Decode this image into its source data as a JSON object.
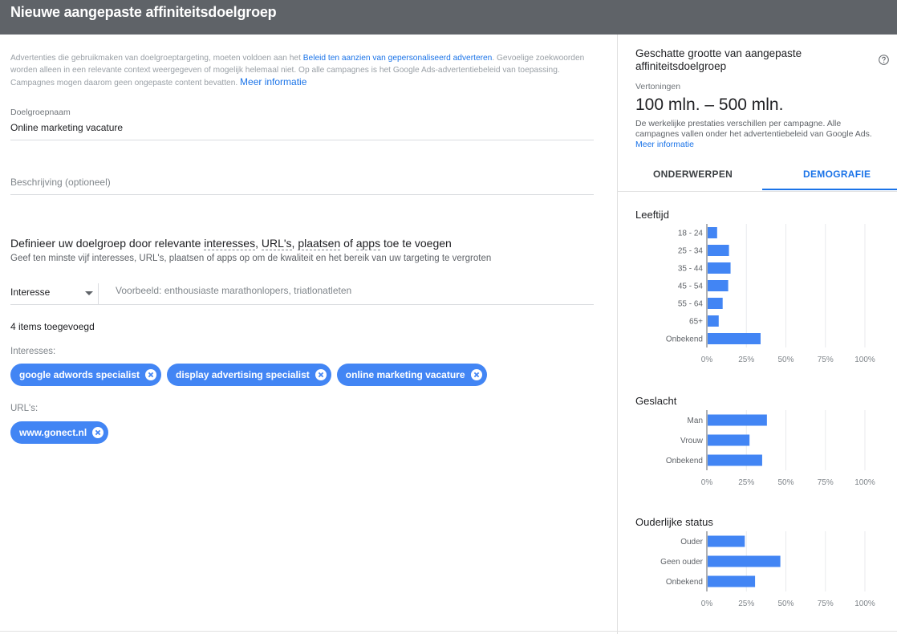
{
  "header": {
    "title": "Nieuwe aangepaste affiniteitsdoelgroep"
  },
  "policy": {
    "prefix": "Advertenties die gebruikmaken van doelgroeptargeting, moeten voldoen aan het ",
    "link": "Beleid ten aanzien van gepersonaliseerd adverteren",
    "suffix": ". Gevoelige zoekwoorden worden alleen in een relevante context weergegeven of mogelijk helemaal niet. Op alle campagnes is het Google Ads-advertentiebeleid van toepassing. Campagnes mogen daarom geen ongepaste content bevatten. ",
    "more": "Meer informatie"
  },
  "form": {
    "name_label": "Doelgroepnaam",
    "name_value": "Online marketing vacature",
    "description_placeholder": "Beschrijving (optioneel)"
  },
  "define": {
    "t1": "Definieer uw doelgroep door relevante ",
    "t2": "interesses",
    "t3": ", ",
    "t4": "URL's",
    "t5": ", ",
    "t6": "plaatsen",
    "t7": " of ",
    "t8": "apps",
    "t9": " toe te voegen",
    "subtitle": "Geef ten minste vijf interesses, URL's, plaatsen of apps op om de kwaliteit en het bereik van uw targeting te vergroten"
  },
  "search": {
    "type_value": "Interesse",
    "placeholder": "Voorbeeld: enthousiaste marathonlopers, triatlonatleten"
  },
  "items": {
    "count_label": "4 items toegevoegd",
    "interests_label": "Interesses:",
    "interests": [
      "google adwords specialist",
      "display advertising specialist",
      "online marketing vacature"
    ],
    "urls_label": "URL's:",
    "urls": [
      "www.gonect.nl"
    ]
  },
  "estimate": {
    "title": "Geschatte grootte van aangepaste affiniteitsdoelgroep",
    "impressions_label": "Vertoningen",
    "impressions_value": "100 mln. – 500 mln.",
    "disclaimer": "De werkelijke prestaties verschillen per campagne. Alle campagnes vallen onder het advertentiebeleid van Google Ads.",
    "more": "Meer informatie"
  },
  "tabs": {
    "topics": "ONDERWERPEN",
    "demographics": "DEMOGRAFIE",
    "active": "demographics"
  },
  "colors": {
    "bar": "#4285f4",
    "accent": "#1a73e8",
    "header": "#5f6368"
  },
  "icons": {
    "help": "help-circle-icon",
    "remove": "remove-chip-icon",
    "dropdown": "dropdown-caret-icon"
  },
  "chart_data": [
    {
      "type": "bar",
      "orientation": "horizontal",
      "title": "Leeftijd",
      "categories": [
        "18 - 24",
        "25 - 34",
        "35 - 44",
        "45 - 54",
        "55 - 64",
        "65+",
        "Onbekend"
      ],
      "values": [
        6.5,
        14,
        15,
        13.5,
        10,
        7.5,
        34
      ],
      "xlim": [
        0,
        100
      ],
      "ticks": [
        "0%",
        "25%",
        "50%",
        "75%",
        "100%"
      ],
      "grid": true
    },
    {
      "type": "bar",
      "orientation": "horizontal",
      "title": "Geslacht",
      "categories": [
        "Man",
        "Vrouw",
        "Onbekend"
      ],
      "values": [
        38,
        27,
        35
      ],
      "xlim": [
        0,
        100
      ],
      "ticks": [
        "0%",
        "25%",
        "50%",
        "75%",
        "100%"
      ],
      "grid": true
    },
    {
      "type": "bar",
      "orientation": "horizontal",
      "title": "Ouderlijke status",
      "categories": [
        "Ouder",
        "Geen ouder",
        "Onbekend"
      ],
      "values": [
        24,
        46.5,
        30.5
      ],
      "xlim": [
        0,
        100
      ],
      "ticks": [
        "0%",
        "25%",
        "50%",
        "75%",
        "100%"
      ],
      "grid": true
    }
  ]
}
